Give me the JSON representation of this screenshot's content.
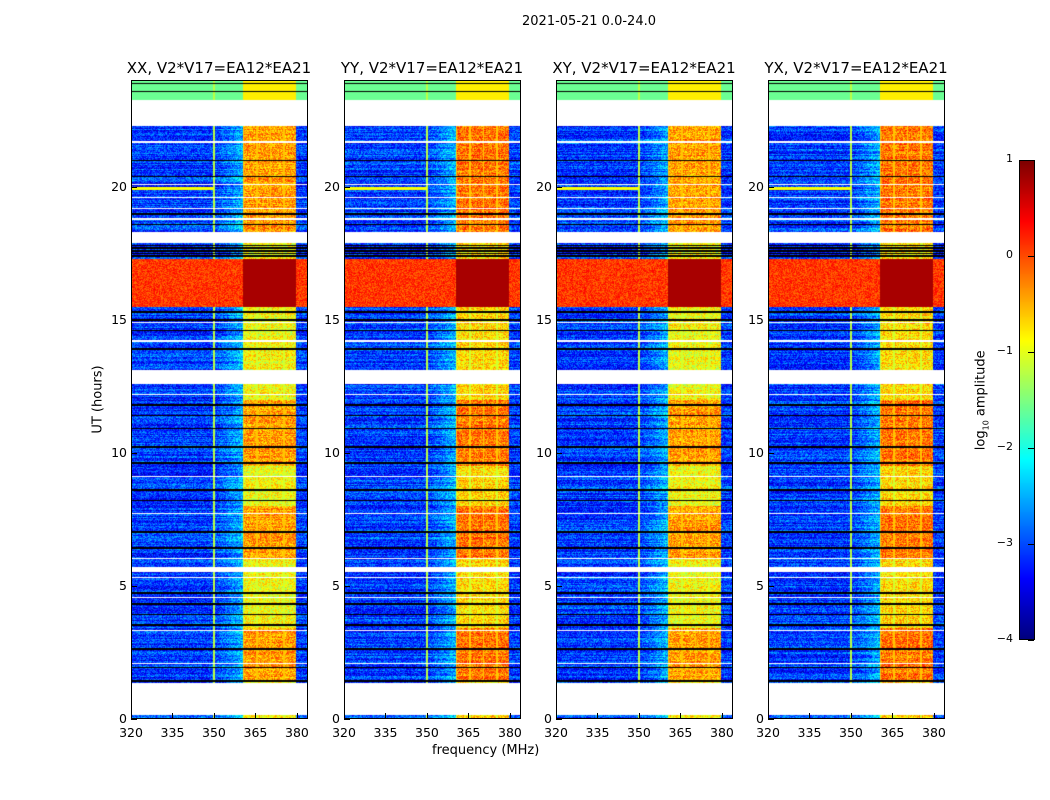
{
  "suptitle": "2021-05-21 0.0-24.0",
  "chart_data": {
    "type": "heatmap",
    "title": "2021-05-21 0.0-24.0",
    "xlabel": "frequency (MHz)",
    "ylabel": "UT (hours)",
    "xlim": [
      320,
      384
    ],
    "ylim": [
      0,
      24
    ],
    "xticks": [
      "320",
      "335",
      "350",
      "365",
      "380"
    ],
    "yticks": [
      "0",
      "5",
      "10",
      "15",
      "20"
    ],
    "panels": [
      {
        "title": "XX, V2*V17=EA12*EA21",
        "band_mhz": [
          360.5,
          380
        ],
        "bright_hours": [
          15.5,
          17.3
        ]
      },
      {
        "title": "YY, V2*V17=EA12*EA21",
        "band_mhz": [
          360.5,
          380
        ],
        "bright_hours": [
          15.5,
          17.3
        ]
      },
      {
        "title": "XY, V2*V17=EA12*EA21",
        "band_mhz": [
          360.5,
          380
        ],
        "bright_hours": [
          15.5,
          17.3
        ]
      },
      {
        "title": "YX, V2*V17=EA12*EA21",
        "band_mhz": [
          360.5,
          380
        ],
        "bright_hours": [
          15.5,
          17.3
        ]
      }
    ],
    "flagged_hours": [
      [
        0.1,
        1.3
      ],
      [
        5.5,
        5.7
      ],
      [
        12.6,
        13.1
      ],
      [
        17.9,
        18.3
      ],
      [
        22.3,
        23.3
      ]
    ],
    "colorbar": {
      "label": "log10 amplitude",
      "range": [
        -4,
        1
      ],
      "ticks": [
        "1",
        "0",
        "−1",
        "−2",
        "−3",
        "−4"
      ],
      "colormap": "jet"
    }
  }
}
